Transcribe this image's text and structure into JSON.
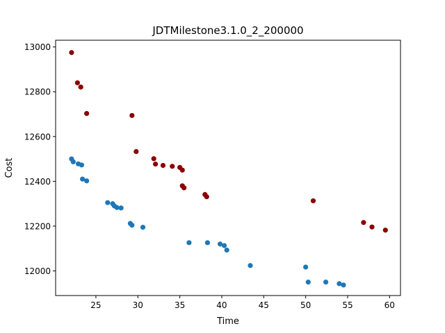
{
  "chart_data": {
    "type": "scatter",
    "title": "JDTMilestone3.1.0_2_200000",
    "xlabel": "Time",
    "ylabel": "Cost",
    "xlim": [
      20.2,
      61.3
    ],
    "ylim": [
      11890,
      13030
    ],
    "xticks": [
      25,
      30,
      35,
      40,
      45,
      50,
      55,
      60
    ],
    "yticks": [
      12000,
      12200,
      12400,
      12600,
      12800,
      13000
    ],
    "grid": false,
    "series": [
      {
        "color": "#1f77b4",
        "points": [
          [
            22.1,
            12500
          ],
          [
            22.3,
            12487
          ],
          [
            22.9,
            12478
          ],
          [
            23.3,
            12473
          ],
          [
            23.4,
            12410
          ],
          [
            23.9,
            12402
          ],
          [
            26.4,
            12305
          ],
          [
            27.0,
            12300
          ],
          [
            27.2,
            12290
          ],
          [
            27.5,
            12283
          ],
          [
            28.0,
            12281
          ],
          [
            29.1,
            12212
          ],
          [
            29.3,
            12204
          ],
          [
            30.6,
            12195
          ],
          [
            36.1,
            12126
          ],
          [
            38.3,
            12126
          ],
          [
            39.8,
            12120
          ],
          [
            40.3,
            12113
          ],
          [
            40.6,
            12093
          ],
          [
            43.4,
            12024
          ],
          [
            50.0,
            12017
          ],
          [
            50.3,
            11950
          ],
          [
            52.4,
            11950
          ],
          [
            54.0,
            11943
          ],
          [
            54.5,
            11937
          ]
        ]
      },
      {
        "color": "#8b0000",
        "points": [
          [
            22.1,
            12975
          ],
          [
            22.8,
            12840
          ],
          [
            23.2,
            12821
          ],
          [
            23.9,
            12703
          ],
          [
            29.3,
            12694
          ],
          [
            29.8,
            12533
          ],
          [
            31.9,
            12501
          ],
          [
            32.1,
            12477
          ],
          [
            33.0,
            12471
          ],
          [
            34.1,
            12467
          ],
          [
            35.0,
            12462
          ],
          [
            35.3,
            12450
          ],
          [
            35.3,
            12380
          ],
          [
            35.5,
            12371
          ],
          [
            38.0,
            12341
          ],
          [
            38.2,
            12331
          ],
          [
            50.9,
            12313
          ],
          [
            56.9,
            12216
          ],
          [
            57.9,
            12196
          ],
          [
            59.5,
            12182
          ]
        ]
      }
    ]
  }
}
